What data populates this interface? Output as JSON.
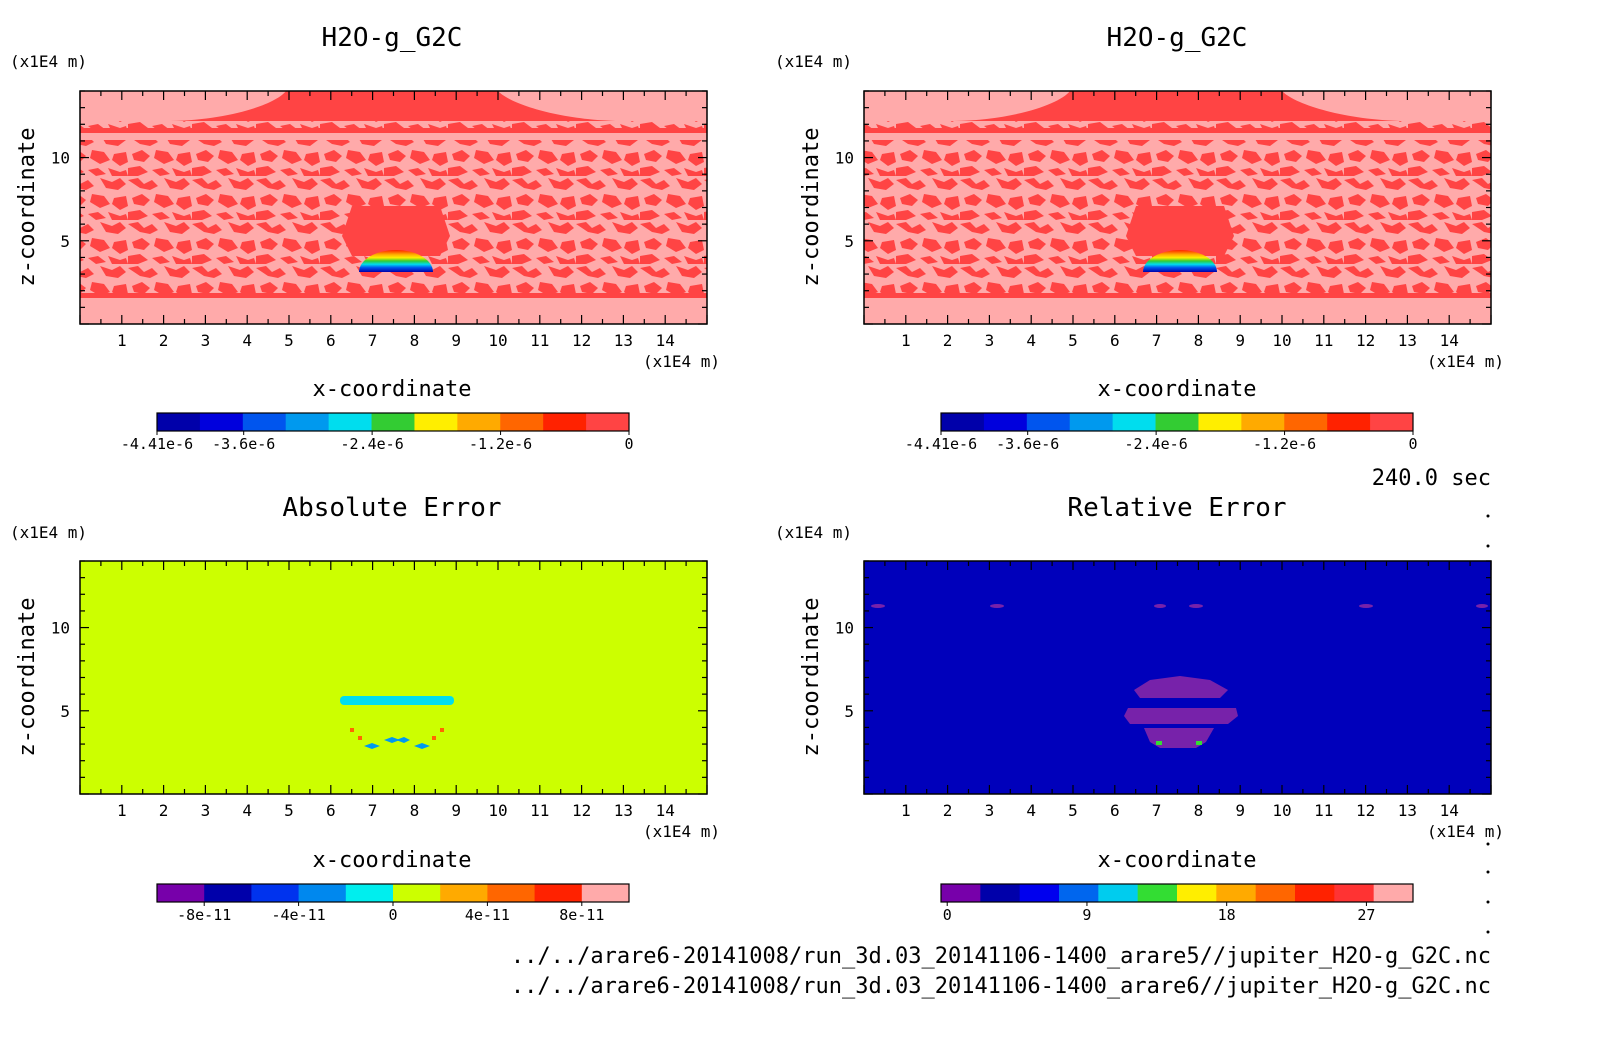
{
  "time_label": "240.0 sec",
  "file_paths": [
    "../../arare6-20141008/run_3d.03_20141106-1400_arare5//jupiter_H2O-g_G2C.nc",
    "../../arare6-20141008/run_3d.03_20141106-1400_arare6//jupiter_H2O-g_G2C.nc"
  ],
  "colors": {
    "field_background": "#ffaaaa",
    "field_noise": "#ff4444",
    "abs_error_background": "#ccff00",
    "rel_error_background": "#0000bb"
  },
  "chart_data": [
    {
      "type": "heatmap",
      "title": "H2O-g_G2C",
      "xlabel": "x-coordinate",
      "ylabel": "z-coordinate",
      "x_unit": "(x1E4 m)",
      "z_unit": "(x1E4 m)",
      "xlim": [
        0,
        15
      ],
      "zlim": [
        0,
        14
      ],
      "x_ticks": [
        1,
        2,
        3,
        4,
        5,
        6,
        7,
        8,
        9,
        10,
        11,
        12,
        13,
        14
      ],
      "z_ticks": [
        5,
        10
      ],
      "colorbar": {
        "min": -4.41e-06,
        "max": 0,
        "tick_values": [
          -4.41e-06,
          -3.6e-06,
          -2.4e-06,
          -1.2e-06,
          0
        ],
        "tick_labels": [
          "-4.41e-6",
          "-3.6e-6",
          "-2.4e-6",
          "-1.2e-6",
          "0"
        ],
        "colors": [
          "#0000aa",
          "#0000dd",
          "#0055ee",
          "#0099ee",
          "#00ddee",
          "#33cc33",
          "#ffee00",
          "#ffaa00",
          "#ff6600",
          "#ff2200",
          "#ff4444"
        ]
      }
    },
    {
      "type": "heatmap",
      "title": "H2O-g_G2C",
      "xlabel": "x-coordinate",
      "ylabel": "z-coordinate",
      "x_unit": "(x1E4 m)",
      "z_unit": "(x1E4 m)",
      "xlim": [
        0,
        15
      ],
      "zlim": [
        0,
        14
      ],
      "x_ticks": [
        1,
        2,
        3,
        4,
        5,
        6,
        7,
        8,
        9,
        10,
        11,
        12,
        13,
        14
      ],
      "z_ticks": [
        5,
        10
      ],
      "colorbar": {
        "min": -4.41e-06,
        "max": 0,
        "tick_values": [
          -4.41e-06,
          -3.6e-06,
          -2.4e-06,
          -1.2e-06,
          0
        ],
        "tick_labels": [
          "-4.41e-6",
          "-3.6e-6",
          "-2.4e-6",
          "-1.2e-6",
          "0"
        ],
        "colors": [
          "#0000aa",
          "#0000dd",
          "#0055ee",
          "#0099ee",
          "#00ddee",
          "#33cc33",
          "#ffee00",
          "#ffaa00",
          "#ff6600",
          "#ff2200",
          "#ff4444"
        ]
      }
    },
    {
      "type": "heatmap",
      "title": "Absolute Error",
      "xlabel": "x-coordinate",
      "ylabel": "z-coordinate",
      "x_unit": "(x1E4 m)",
      "z_unit": "(x1E4 m)",
      "xlim": [
        0,
        15
      ],
      "zlim": [
        0,
        14
      ],
      "x_ticks": [
        1,
        2,
        3,
        4,
        5,
        6,
        7,
        8,
        9,
        10,
        11,
        12,
        13,
        14
      ],
      "z_ticks": [
        5,
        10
      ],
      "colorbar": {
        "min": -1e-10,
        "max": 1e-10,
        "tick_values": [
          -8e-11,
          -4e-11,
          0,
          4e-11,
          8e-11
        ],
        "tick_labels": [
          "-8e-11",
          "-4e-11",
          "0",
          "4e-11",
          "8e-11"
        ],
        "colors": [
          "#7700aa",
          "#0000aa",
          "#0033ee",
          "#0088ee",
          "#00eeee",
          "#ccff00",
          "#ffaa00",
          "#ff6600",
          "#ff2200",
          "#ffaaaa"
        ]
      }
    },
    {
      "type": "heatmap",
      "title": "Relative Error",
      "xlabel": "x-coordinate",
      "ylabel": "z-coordinate",
      "x_unit": "(x1E4 m)",
      "z_unit": "(x1E4 m)",
      "xlim": [
        0,
        15
      ],
      "zlim": [
        0,
        14
      ],
      "x_ticks": [
        1,
        2,
        3,
        4,
        5,
        6,
        7,
        8,
        9,
        10,
        11,
        12,
        13,
        14
      ],
      "z_ticks": [
        5,
        10
      ],
      "colorbar": {
        "min": -0.4,
        "max": 30,
        "tick_values": [
          0,
          9,
          18,
          27
        ],
        "tick_labels": [
          "0",
          "9",
          "18",
          "27"
        ],
        "colors": [
          "#7700aa",
          "#0000aa",
          "#0000ee",
          "#0066ee",
          "#00ccee",
          "#33dd33",
          "#ffee00",
          "#ffaa00",
          "#ff6600",
          "#ff2200",
          "#ff3333",
          "#ffaaaa"
        ]
      }
    }
  ]
}
